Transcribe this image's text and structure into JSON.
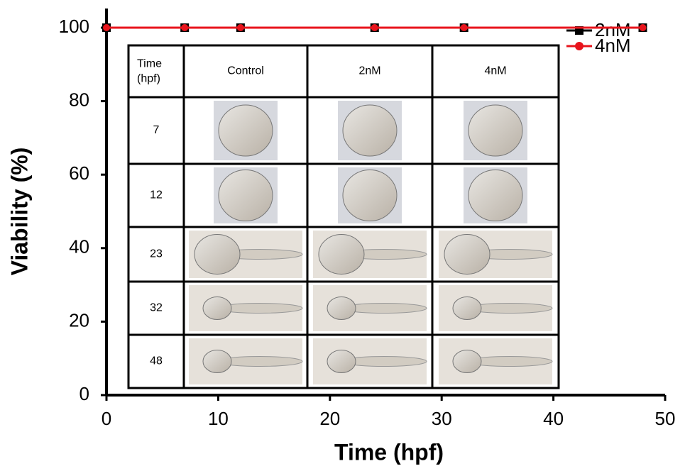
{
  "chart_data": {
    "type": "line",
    "x_label": "Time (hpf)",
    "y_label": "Viability (%)",
    "series": [
      {
        "name": "2nM",
        "color": "#000000",
        "marker": "square",
        "x": [
          0,
          7,
          12,
          24,
          32,
          48
        ],
        "values": [
          100,
          100,
          100,
          100,
          100,
          100
        ]
      },
      {
        "name": "4nM",
        "color": "#e8141c",
        "marker": "circle",
        "x": [
          0,
          7,
          12,
          24,
          32,
          48
        ],
        "values": [
          100,
          100,
          100,
          100,
          100,
          100
        ]
      }
    ],
    "xlim": [
      0,
      50
    ],
    "xticks": [
      0,
      10,
      20,
      30,
      40,
      50
    ],
    "ylim": [
      0,
      100
    ],
    "yticks": [
      0,
      20,
      40,
      60,
      80,
      100
    ],
    "legend": "upper right"
  },
  "table": {
    "header": [
      "Time (hpf)",
      "Control",
      "2nM",
      "4nM"
    ],
    "rows": [
      "7",
      "12",
      "23",
      "32",
      "48"
    ]
  }
}
